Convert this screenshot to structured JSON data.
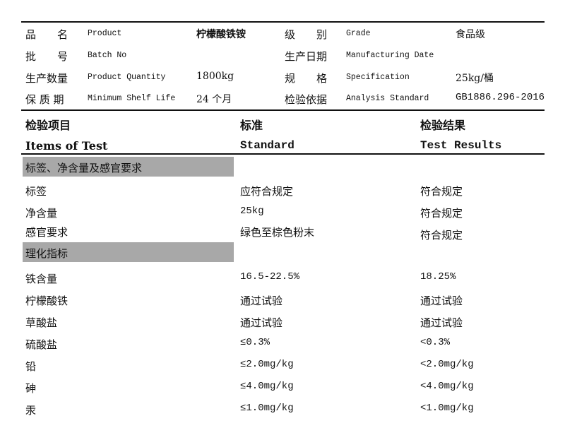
{
  "info": [
    {
      "label_cn": "品　　名",
      "label_en": "Product",
      "value": "柠檬酸铁铵",
      "label2_cn": "级　　别",
      "label2_en": "Grade",
      "value2": "食品级"
    },
    {
      "label_cn": "批　　号",
      "label_en": "Batch No",
      "value": "",
      "label2_cn": "生产日期",
      "label2_en": "Manufacturing Date",
      "value2": ""
    },
    {
      "label_cn": "生产数量",
      "label_en": "Product Quantity",
      "value": "1800kg",
      "label2_cn": "规　　格",
      "label2_en": "Specification",
      "value2": "25kg/桶"
    },
    {
      "label_cn": "保 质 期",
      "label_en": "Minimum Shelf Life",
      "value": "24 个月",
      "label2_cn": "检验依据",
      "label2_en": "Analysis Standard",
      "value2": "GB1886.296-2016"
    }
  ],
  "header": {
    "item_cn": "检验项目",
    "standard_cn": "标准",
    "result_cn": "检验结果",
    "item_en": "Items of Test",
    "standard_en": "Standard",
    "result_en": "Test Results"
  },
  "sections": [
    {
      "title": "标签、净含量及感官要求",
      "rows": [
        {
          "item": "标签",
          "standard": "应符合规定",
          "result": "符合规定"
        },
        {
          "item": "净含量",
          "standard": "25kg",
          "result": "符合规定"
        },
        {
          "item": "感官要求",
          "standard": "绿色至棕色粉末",
          "result": "符合规定"
        }
      ]
    },
    {
      "title": "理化指标",
      "rows": [
        {
          "item": "铁含量",
          "standard": "16.5-22.5%",
          "result": "18.25%"
        },
        {
          "item": "柠檬酸铁",
          "standard": "通过试验",
          "result": "通过试验"
        },
        {
          "item": "草酸盐",
          "standard": "通过试验",
          "result": "通过试验"
        },
        {
          "item": "硫酸盐",
          "standard": "≤0.3%",
          "result": "<0.3%"
        },
        {
          "item": "铅",
          "standard": "≤2.0mg/kg",
          "result": "<2.0mg/kg"
        },
        {
          "item": "砷",
          "standard": "≤4.0mg/kg",
          "result": "<4.0mg/kg"
        },
        {
          "item": "汞",
          "standard": "≤1.0mg/kg",
          "result": "<1.0mg/kg"
        }
      ]
    }
  ]
}
